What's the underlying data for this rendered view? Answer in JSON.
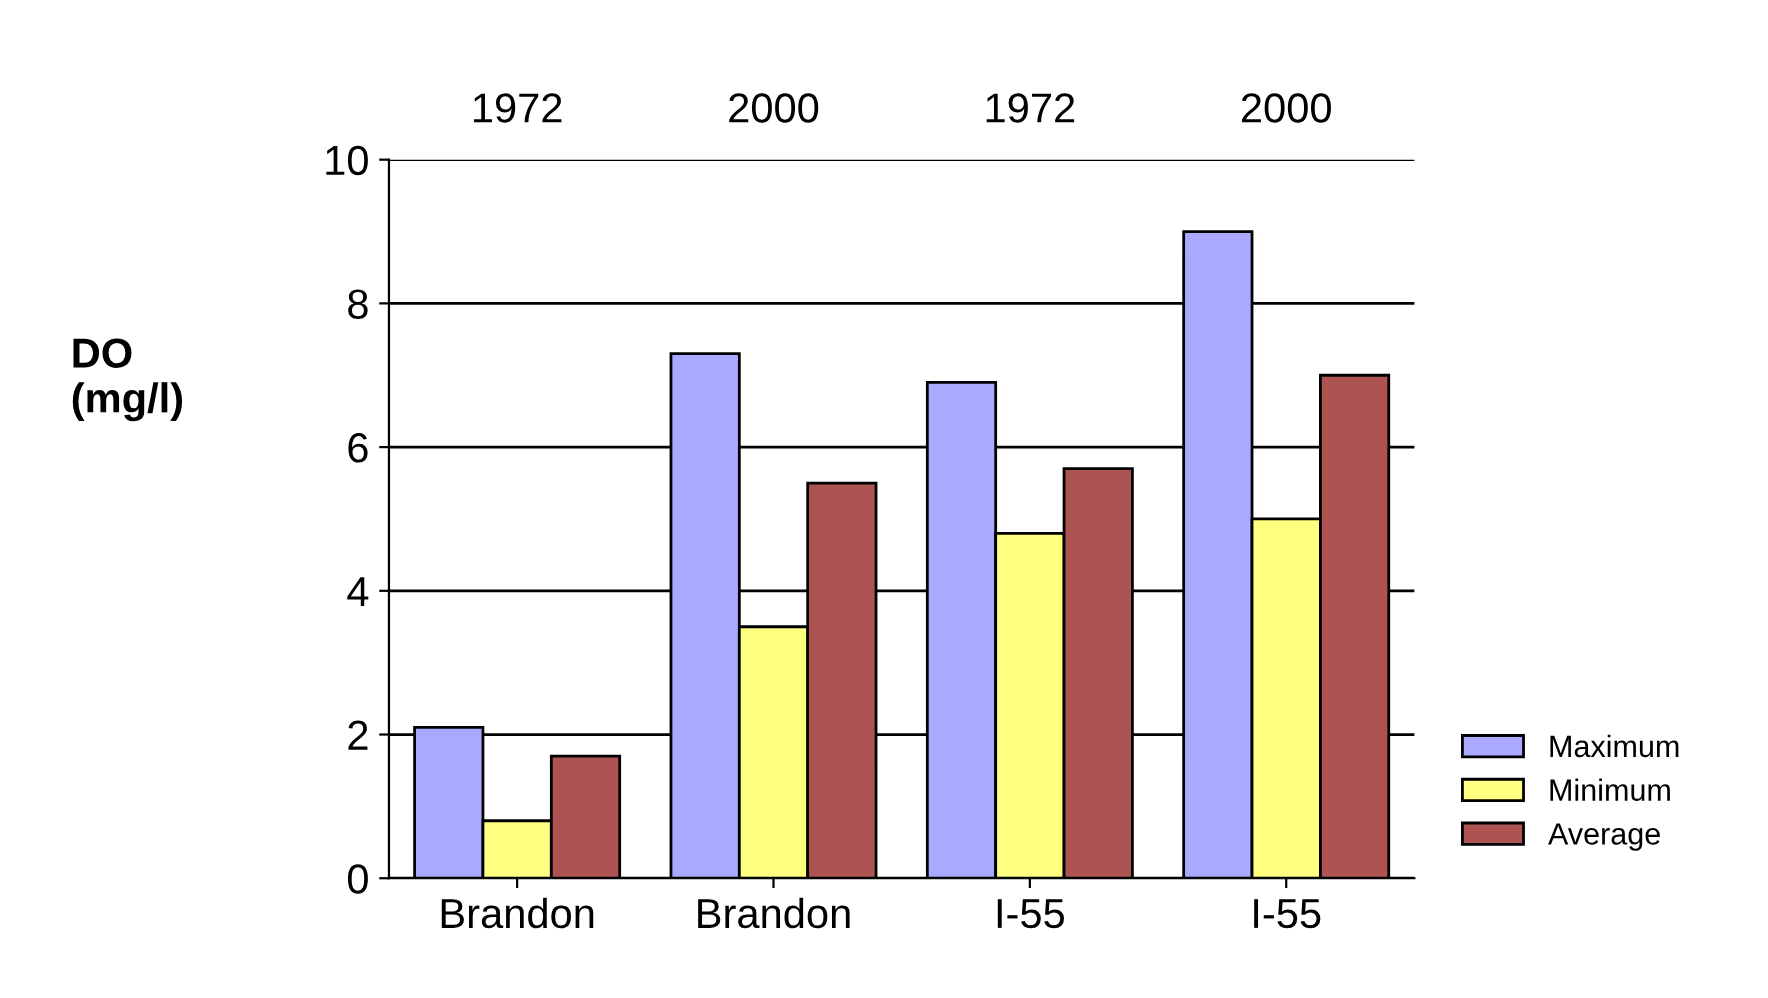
{
  "chart_data": {
    "type": "bar",
    "ylabel": "DO\n(mg/l)",
    "categories": [
      "Brandon",
      "Brandon",
      "I-55",
      "I-55"
    ],
    "annotations": [
      "1972",
      "2000",
      "1972",
      "2000"
    ],
    "series": [
      {
        "name": "Maximum",
        "color": "#a9aaff",
        "values": [
          2.1,
          7.3,
          6.9,
          9.0
        ]
      },
      {
        "name": "Minimum",
        "color": "#ffff80",
        "values": [
          0.8,
          3.5,
          4.8,
          5.0
        ]
      },
      {
        "name": "Average",
        "color": "#ad5452",
        "values": [
          1.7,
          5.5,
          5.7,
          7.0
        ]
      }
    ],
    "ylim": [
      0,
      10
    ],
    "yticks": [
      0,
      2,
      4,
      6,
      8,
      10
    ],
    "grid": "y",
    "legend": "bottom right"
  }
}
